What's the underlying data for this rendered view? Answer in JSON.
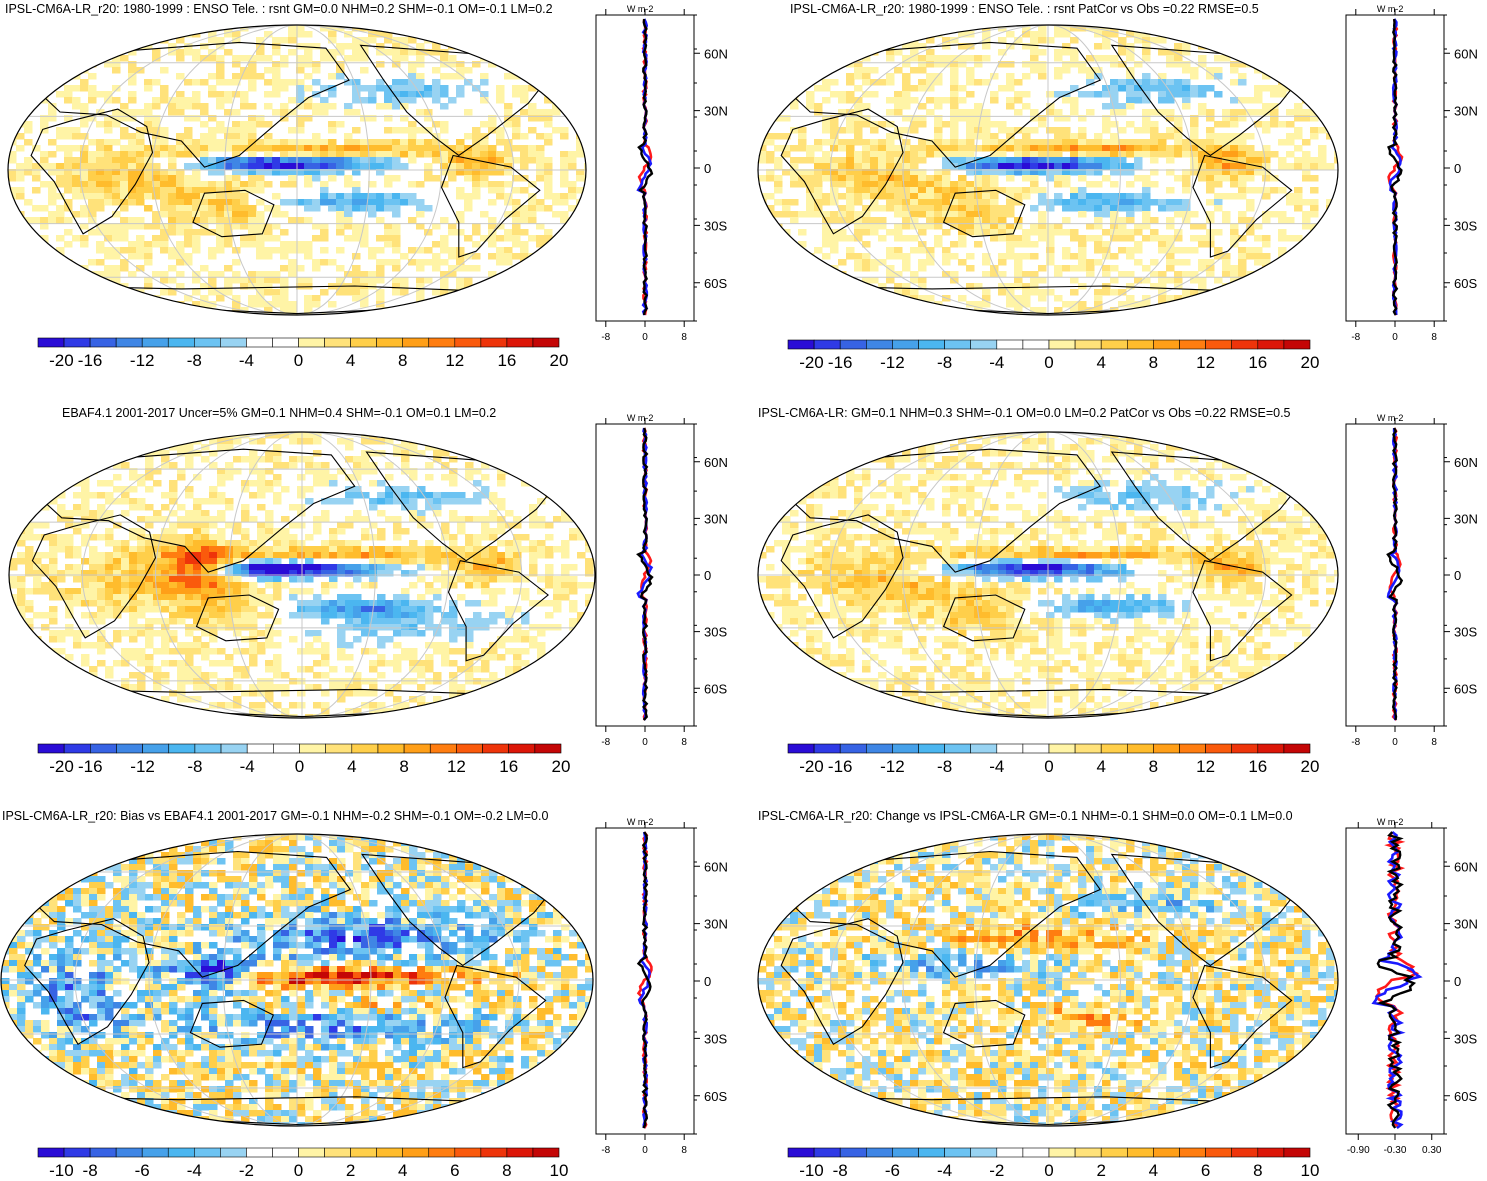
{
  "chart_data": [
    {
      "type": "heatmap",
      "title": "IPSL-CM6A-LR_r20: 1980-1999 : ENSO Tele. : rsnt GM=0.0 NHM=0.2 SHM=-0.1 OM=-0.1 LM=0.2",
      "unit": "W m-2",
      "colorbar_ticks": [
        "-20",
        "-16",
        "-12",
        "-8",
        "-4",
        "0",
        "4",
        "8",
        "12",
        "16",
        "20"
      ],
      "colorbar_range": [
        -20,
        20
      ],
      "zonal_profile": {
        "lat_ticks": [
          "60N",
          "30N",
          "0",
          "30S",
          "60S"
        ],
        "x_ticks": [
          "-8",
          "0",
          "8"
        ],
        "x_range": [
          -10,
          10
        ],
        "lines": [
          "red",
          "blue",
          "black"
        ]
      }
    },
    {
      "type": "heatmap",
      "title": "IPSL-CM6A-LR_r20: 1980-1999 : ENSO Tele. : rsnt PatCor vs Obs =0.22 RMSE=0.5",
      "unit": "W m-2",
      "colorbar_ticks": [
        "-20",
        "-16",
        "-12",
        "-8",
        "-4",
        "0",
        "4",
        "8",
        "12",
        "16",
        "20"
      ],
      "colorbar_range": [
        -20,
        20
      ],
      "zonal_profile": {
        "lat_ticks": [
          "60N",
          "30N",
          "0",
          "30S",
          "60S"
        ],
        "x_ticks": [
          "-8",
          "0",
          "8"
        ],
        "x_range": [
          -10,
          10
        ],
        "lines": [
          "red",
          "blue",
          "black"
        ]
      }
    },
    {
      "type": "heatmap",
      "title": "EBAF4.1 2001-2017 Uncer=5% GM=0.1 NHM=0.4 SHM=-0.1 OM=0.1 LM=0.2",
      "unit": "W m-2",
      "colorbar_ticks": [
        "-20",
        "-16",
        "-12",
        "-8",
        "-4",
        "0",
        "4",
        "8",
        "12",
        "16",
        "20"
      ],
      "colorbar_range": [
        -20,
        20
      ],
      "zonal_profile": {
        "lat_ticks": [
          "60N",
          "30N",
          "0",
          "30S",
          "60S"
        ],
        "x_ticks": [
          "-8",
          "0",
          "8"
        ],
        "x_range": [
          -10,
          10
        ],
        "lines": [
          "red",
          "blue",
          "black"
        ]
      }
    },
    {
      "type": "heatmap",
      "title": "IPSL-CM6A-LR: GM=0.1 NHM=0.3 SHM=-0.1 OM=0.0 LM=0.2 PatCor vs Obs =0.22 RMSE=0.5",
      "unit": "W m-2",
      "colorbar_ticks": [
        "-20",
        "-16",
        "-12",
        "-8",
        "-4",
        "0",
        "4",
        "8",
        "12",
        "16",
        "20"
      ],
      "colorbar_range": [
        -20,
        20
      ],
      "zonal_profile": {
        "lat_ticks": [
          "60N",
          "30N",
          "0",
          "30S",
          "60S"
        ],
        "x_ticks": [
          "-8",
          "0",
          "8"
        ],
        "x_range": [
          -10,
          10
        ],
        "lines": [
          "red",
          "blue",
          "black"
        ]
      }
    },
    {
      "type": "heatmap",
      "title": "IPSL-CM6A-LR_r20: Bias vs EBAF4.1 2001-2017 GM=-0.1 NHM=-0.2 SHM=-0.1 OM=-0.2 LM=0.0",
      "unit": "W m-2",
      "colorbar_ticks": [
        "-10",
        "-8",
        "-6",
        "-4",
        "-2",
        "0",
        "2",
        "4",
        "6",
        "8",
        "10"
      ],
      "colorbar_range": [
        -10,
        10
      ],
      "zonal_profile": {
        "lat_ticks": [
          "60N",
          "30N",
          "0",
          "30S",
          "60S"
        ],
        "x_ticks": [
          "-8",
          "0",
          "8"
        ],
        "x_range": [
          -10,
          10
        ],
        "lines": [
          "red",
          "blue",
          "black"
        ]
      }
    },
    {
      "type": "heatmap",
      "title": "IPSL-CM6A-LR_r20: Change vs IPSL-CM6A-LR GM=-0.1 NHM=-0.1 SHM=0.0 OM=-0.1 LM=0.0",
      "unit": "W m-2",
      "colorbar_ticks": [
        "-10",
        "-8",
        "-6",
        "-4",
        "-2",
        "0",
        "2",
        "4",
        "6",
        "8",
        "10"
      ],
      "colorbar_range": [
        -10,
        10
      ],
      "zonal_profile": {
        "lat_ticks": [
          "60N",
          "30N",
          "0",
          "30S",
          "60S"
        ],
        "x_ticks": [
          "-0.90",
          "-0.30",
          "0.30"
        ],
        "x_range": [
          -1.1,
          0.5
        ],
        "lines": [
          "red",
          "blue",
          "black"
        ]
      }
    }
  ],
  "colors": {
    "palette": [
      "#2a0cd6",
      "#2f3ae6",
      "#3763e4",
      "#3f86e5",
      "#46a1ea",
      "#4bb6f0",
      "#6cc3f2",
      "#98d3f2",
      "#ffffff",
      "#ffffff",
      "#fff4a6",
      "#ffe27a",
      "#ffcf4a",
      "#ffbc2c",
      "#ff9f18",
      "#ff7d10",
      "#fa5a0c",
      "#ee340a",
      "#dc1608",
      "#c40606"
    ],
    "coast": "#000000",
    "grid": "#c8c8c8",
    "line_red": "#ff1a1a",
    "line_blue": "#1a1aff",
    "line_black": "#000000"
  }
}
